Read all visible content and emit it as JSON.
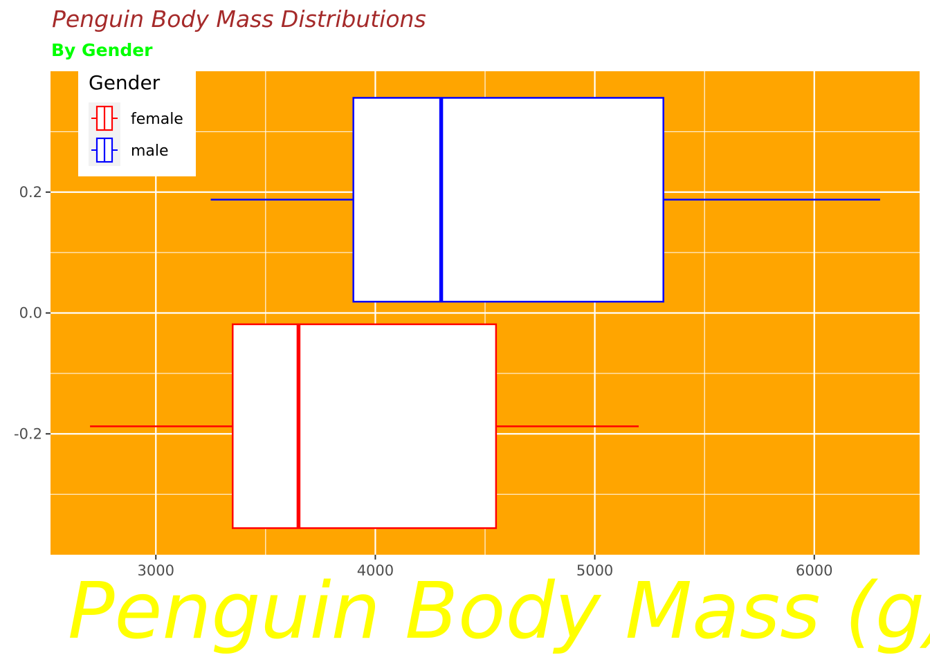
{
  "chart_data": {
    "type": "boxplot",
    "orientation": "horizontal",
    "title": "Penguin Body Mass Distributions",
    "subtitle": "By Gender",
    "xlabel": "Penguin Body Mass (g)",
    "ylabel": "",
    "xlim": [
      2520,
      6480
    ],
    "ylim": [
      -0.4,
      0.4
    ],
    "x_ticks": [
      3000,
      4000,
      5000,
      6000
    ],
    "y_ticks": [
      -0.2,
      0.0,
      0.2
    ],
    "y_tick_labels": [
      "-0.2",
      "0.0",
      "0.2"
    ],
    "grid": true,
    "panel_background": "#ffa500",
    "legend": {
      "title": "Gender",
      "position": "top-left"
    },
    "series": [
      {
        "name": "female",
        "color": "#ff0000",
        "min": 2700,
        "q1": 3350,
        "median": 3650,
        "q3": 4550,
        "max": 5200,
        "y_center": -0.1875,
        "y_range": [
          -0.356,
          -0.0187
        ]
      },
      {
        "name": "male",
        "color": "#0000ff",
        "min": 3250,
        "q1": 3900,
        "median": 4300,
        "q3": 5312.5,
        "max": 6300,
        "y_center": 0.1875,
        "y_range": [
          0.0187,
          0.356
        ]
      }
    ]
  }
}
